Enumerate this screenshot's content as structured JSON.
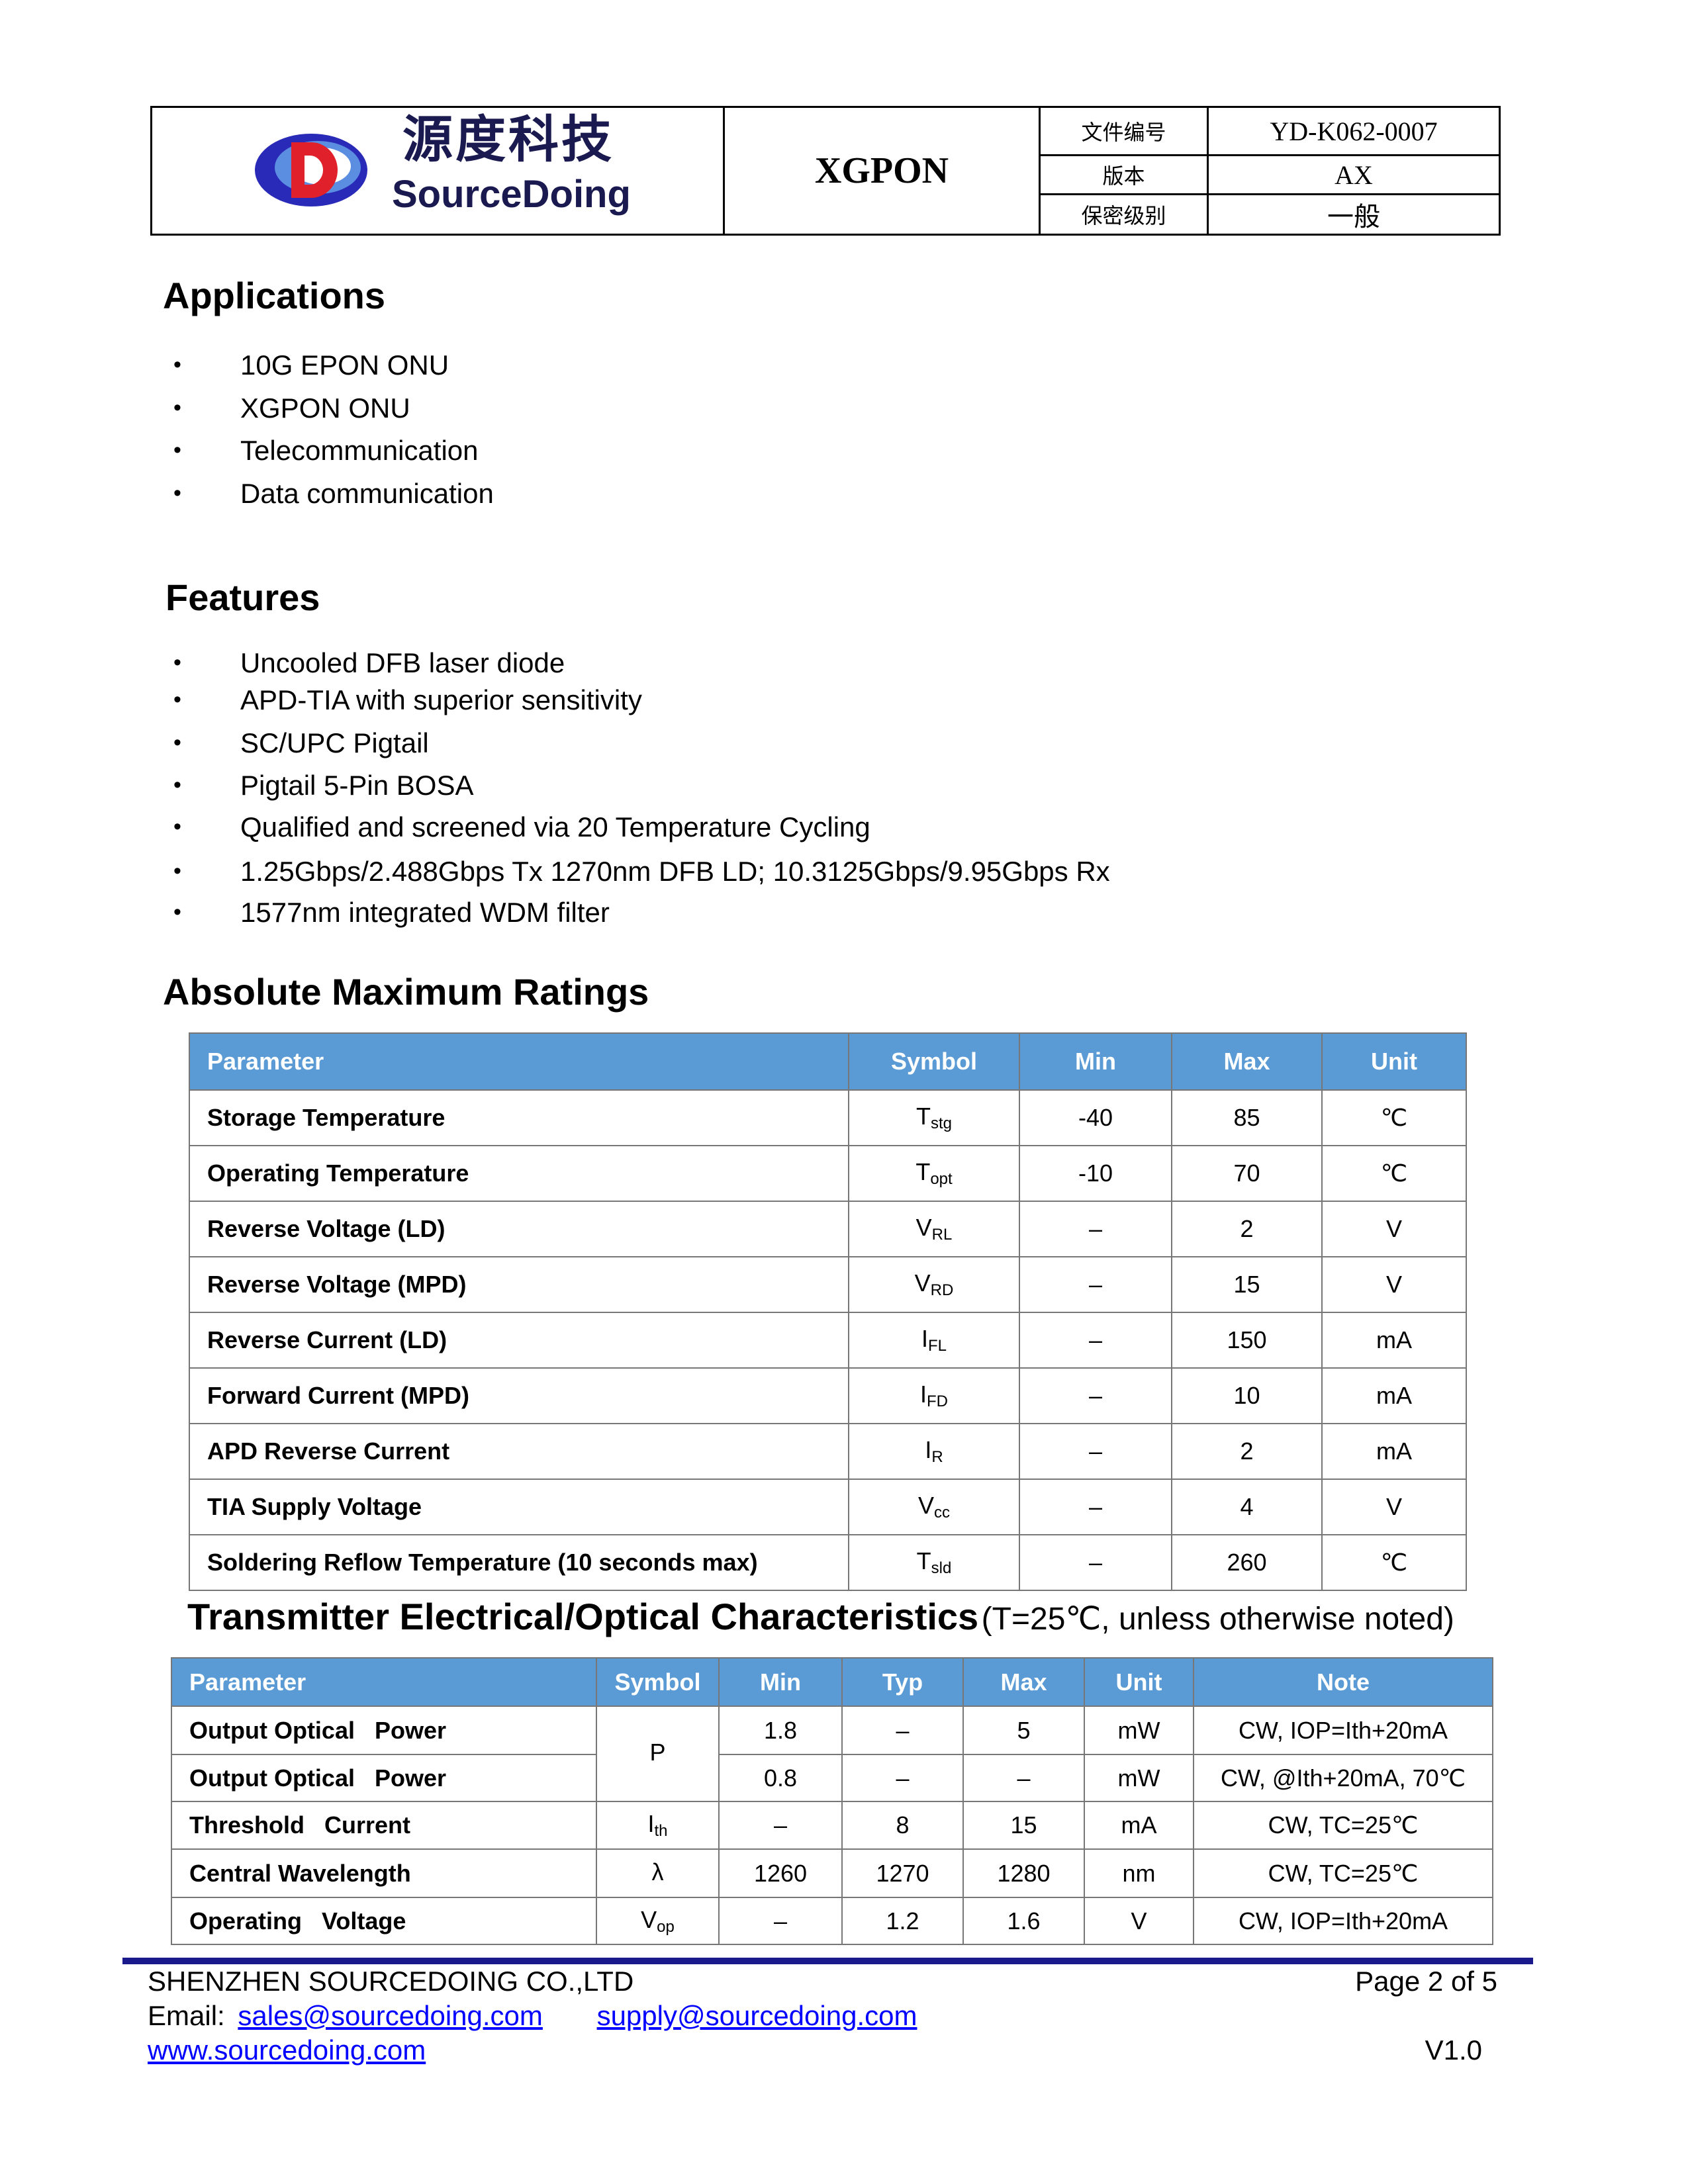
{
  "header": {
    "logo_text_cn": "源度科技",
    "logo_text_en": "SourceDoing",
    "product": "XGPON",
    "rows": [
      {
        "label": "文件编号",
        "value": "YD-K062-0007"
      },
      {
        "label": "版本",
        "value": "AX"
      },
      {
        "label": "保密级别",
        "value": "一般"
      }
    ]
  },
  "applications": {
    "title": "Applications",
    "items": [
      "10G EPON ONU",
      "XGPON ONU",
      "Telecommunication",
      "Data communication"
    ]
  },
  "features": {
    "title": "Features",
    "items": [
      "Uncooled DFB laser diode",
      "APD-TIA with superior sensitivity",
      "SC/UPC Pigtail",
      "Pigtail 5-Pin BOSA",
      "Qualified and screened via 20 Temperature Cycling",
      "1.25Gbps/2.488Gbps Tx 1270nm DFB LD; 10.3125Gbps/9.95Gbps Rx",
      "1577nm integrated WDM filter"
    ]
  },
  "amr": {
    "title": "Absolute Maximum Ratings",
    "headers": [
      "Parameter",
      "Symbol",
      "Min",
      "Max",
      "Unit"
    ],
    "rows": [
      {
        "param": "Storage Temperature",
        "sym": "T",
        "sub": "stg",
        "min": "-40",
        "max": "85",
        "unit": "℃"
      },
      {
        "param": "Operating Temperature",
        "sym": "T",
        "sub": "opt",
        "min": "-10",
        "max": "70",
        "unit": "℃"
      },
      {
        "param": "Reverse Voltage (LD)",
        "sym": "V",
        "sub": "RL",
        "min": "–",
        "max": "2",
        "unit": "V"
      },
      {
        "param": "Reverse Voltage (MPD)",
        "sym": "V",
        "sub": "RD",
        "min": "–",
        "max": "15",
        "unit": "V"
      },
      {
        "param": "Reverse Current (LD)",
        "sym": "I",
        "sub": "FL",
        "min": "–",
        "max": "150",
        "unit": "mA"
      },
      {
        "param": "Forward Current (MPD)",
        "sym": "I",
        "sub": "FD",
        "min": "–",
        "max": "10",
        "unit": "mA"
      },
      {
        "param": "APD Reverse Current",
        "sym": "I",
        "sub": "R",
        "min": "–",
        "max": "2",
        "unit": "mA"
      },
      {
        "param": "TIA Supply Voltage",
        "sym": "V",
        "sub": "cc",
        "min": "–",
        "max": "4",
        "unit": "V"
      },
      {
        "param": "Soldering Reflow Temperature (10 seconds max)",
        "sym": "T",
        "sub": "sld",
        "min": "–",
        "max": "260",
        "unit": "℃"
      }
    ]
  },
  "tx": {
    "title": "Transmitter Electrical/Optical Characteristics",
    "subtitle": "(T=25℃, unless otherwise noted)",
    "headers": [
      "Parameter",
      "Symbol",
      "Min",
      "Typ",
      "Max",
      "Unit",
      "Note"
    ],
    "rows": [
      {
        "param": "Output Optical   Power",
        "sym": "P",
        "sub": "",
        "min": "1.8",
        "typ": "–",
        "max": "5",
        "unit": "mW",
        "note": "CW, IOP=Ith+20mA"
      },
      {
        "param": "Output Optical   Power",
        "min": "0.8",
        "typ": "–",
        "max": "–",
        "unit": "mW",
        "note": "CW, @Ith+20mA, 70℃"
      },
      {
        "param": "Threshold   Current",
        "sym": "I",
        "sub": "th",
        "min": "–",
        "typ": "8",
        "max": "15",
        "unit": "mA",
        "note": "CW, TC=25℃"
      },
      {
        "param": "Central Wavelength",
        "sym": "λ",
        "sub": "",
        "min": "1260",
        "typ": "1270",
        "max": "1280",
        "unit": "nm",
        "note": "CW, TC=25℃"
      },
      {
        "param": "Operating   Voltage",
        "sym": "V",
        "sub": "op",
        "min": "–",
        "typ": "1.2",
        "max": "1.6",
        "unit": "V",
        "note": "CW, IOP=Ith+20mA"
      }
    ]
  },
  "footer": {
    "company": "SHENZHEN SOURCEDOING CO.,LTD",
    "page": "Page 2 of 5",
    "email_label": "Email:",
    "email1": "sales@sourcedoing.com",
    "email2": "supply@sourcedoing.com",
    "website": "www.sourcedoing.com",
    "version": "V1.0"
  },
  "colors": {
    "table_header": "#5b9bd5",
    "footer_rule": "#1a1a8c"
  }
}
